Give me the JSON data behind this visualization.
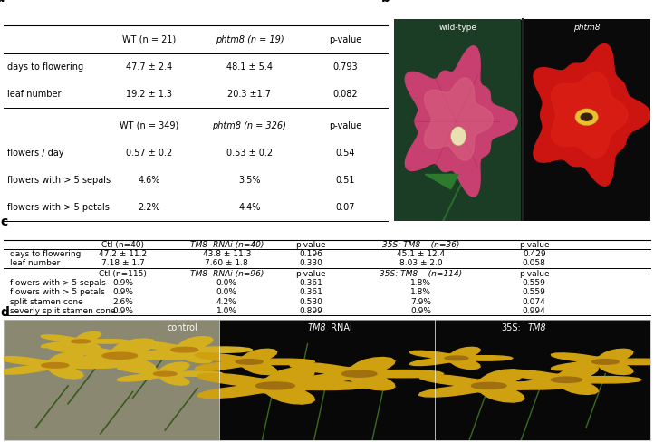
{
  "panel_a_label": "a",
  "panel_b_label": "b",
  "panel_c_label": "c",
  "panel_d_label": "d",
  "table_a": {
    "header1": [
      "",
      "WT (n = 21)",
      "phtm8 (n = 19)",
      "p-value"
    ],
    "rows1": [
      [
        "days to flowering",
        "47.7 ± 2.4",
        "48.1 ± 5.4",
        "0.793"
      ],
      [
        "leaf number",
        "19.2 ± 1.3",
        "20.3 ±1.7",
        "0.082"
      ]
    ],
    "header2": [
      "",
      "WT (n = 349)",
      "phtm8 (n = 326)",
      "p-value"
    ],
    "rows2": [
      [
        "flowers / day",
        "0.57 ± 0.2",
        "0.53 ± 0.2",
        "0.54"
      ],
      [
        "flowers with > 5 sepals",
        "4.6%",
        "3.5%",
        "0.51"
      ],
      [
        "flowers with > 5 petals",
        "2.2%",
        "4.4%",
        "0.07"
      ]
    ]
  },
  "table_c": {
    "header1": [
      "",
      "Ctl (n=40)",
      "TM8 -RNAi (n=40)",
      "p-value",
      "35S: TM8    (n=36)",
      "p-value"
    ],
    "header1_italic": [
      false,
      false,
      true,
      false,
      true,
      false
    ],
    "rows1": [
      [
        "days to flowering",
        "47.2 ± 11.2",
        "43.8 ± 11.3",
        "0.196",
        "45.1 ± 12.4",
        "0.429"
      ],
      [
        "leaf number",
        "7.18 ± 1.7",
        "7.60 ± 1.8",
        "0.330",
        "8.03 ± 2.0",
        "0.058"
      ]
    ],
    "header2": [
      "",
      "Ctl (n=115)",
      "TM8 -RNAi (n=96)",
      "p-value",
      "35S: TM8    (n=114)",
      "p-value"
    ],
    "header2_italic": [
      false,
      false,
      true,
      false,
      true,
      false
    ],
    "rows2": [
      [
        "flowers with > 5 sepals",
        "0.9%",
        "0.0%",
        "0.361",
        "1.8%",
        "0.559"
      ],
      [
        "flowers with > 5 petals",
        "0.9%",
        "0.0%",
        "0.361",
        "1.8%",
        "0.559"
      ],
      [
        "split stamen cone",
        "2.6%",
        "4.2%",
        "0.530",
        "7.9%",
        "0.074"
      ],
      [
        "severly split stamen cone",
        "0.9%",
        "1.0%",
        "0.899",
        "0.9%",
        "0.994"
      ]
    ]
  },
  "img_b_labels": [
    "wild-type",
    "phtm8"
  ],
  "img_d_label0": "control",
  "img_d_label1_pre": "TM8",
  "img_d_label1_post": " RNAi",
  "img_d_label2_pre": "35S:",
  "img_d_label2_post": "TM8",
  "bg_color": "#ffffff",
  "text_color": "#000000"
}
